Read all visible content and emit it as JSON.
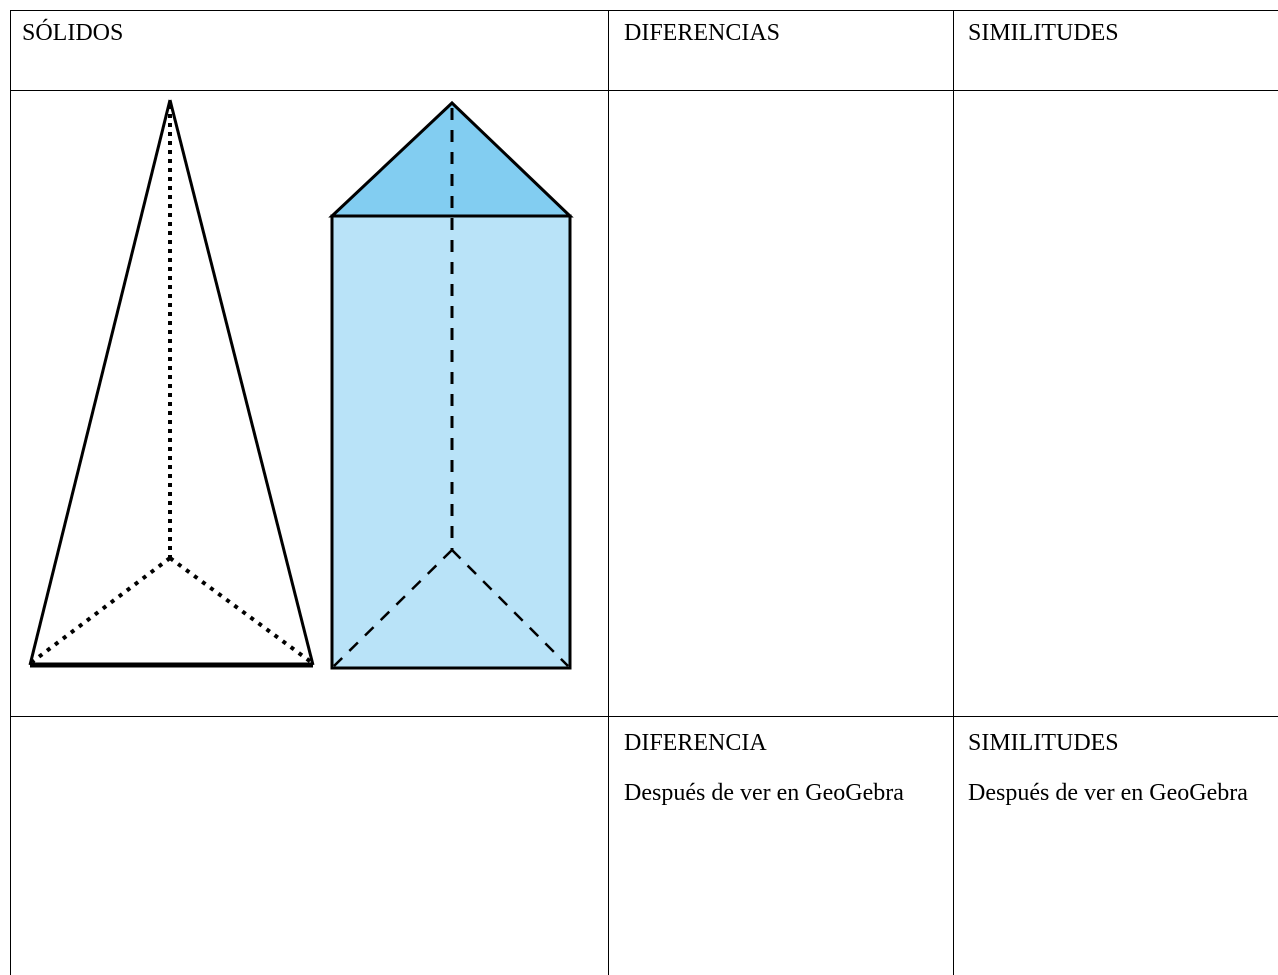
{
  "table": {
    "header": [
      "SÓLIDOS",
      "DIFERENCIAS",
      "SIMILITUDES"
    ],
    "after": {
      "differences": {
        "title": "DIFERENCIA",
        "text": "Después de ver en GeoGebra"
      },
      "similarities": {
        "title": "SIMILITUDES",
        "text": "Después de ver en GeoGebra"
      }
    }
  }
}
